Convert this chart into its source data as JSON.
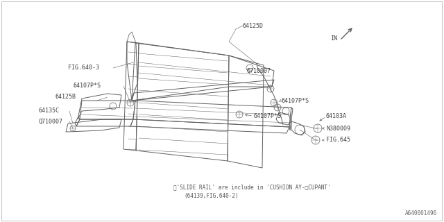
{
  "bg_color": "#ffffff",
  "line_color": "#606060",
  "text_color": "#404040",
  "footnote_line1": "※'SLIDE RAIL' are include in 'CUSHION AY-□CUPANT'",
  "footnote_line2": "(64139,FIG.640-2)",
  "part_id": "A640001496",
  "figsize": [
    6.4,
    3.2
  ],
  "dpi": 100
}
